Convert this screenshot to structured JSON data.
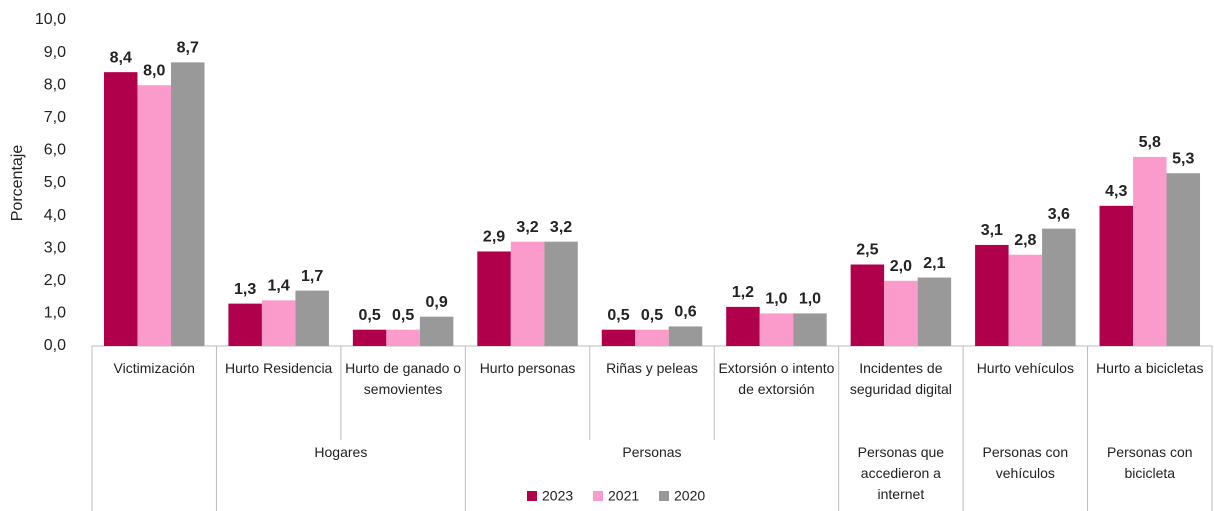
{
  "chart_data": {
    "type": "bar",
    "y_label": "Porcentaje",
    "categories": [
      "Victimización",
      "Hurto Residencia",
      "Hurto de ganado o semovientes",
      "Hurto personas",
      "Riñas y peleas",
      "Extorsión o intento de extorsión",
      "Incidentes de seguridad digital",
      "Hurto vehículos",
      "Hurto a bicicletas"
    ],
    "groups": [
      {
        "label": null,
        "span": 1
      },
      {
        "label": "Hogares",
        "span": 2
      },
      {
        "label": "Personas",
        "span": 3
      },
      {
        "label": "Personas que accedieron a internet",
        "span": 1
      },
      {
        "label": "Personas con vehículos",
        "span": 1
      },
      {
        "label": "Personas con bicicleta",
        "span": 1
      }
    ],
    "series": [
      {
        "name": "2023",
        "color": "#b0004c",
        "values": [
          8.4,
          1.3,
          0.5,
          2.9,
          0.5,
          1.2,
          2.5,
          3.1,
          4.3
        ],
        "value_labels": [
          "8,4",
          "1,3",
          "0,5",
          "2,9",
          "0,5",
          "1,2",
          "2,5",
          "3,1",
          "4,3"
        ]
      },
      {
        "name": "2021",
        "color": "#fb9bcc",
        "values": [
          8.0,
          1.4,
          0.5,
          3.2,
          0.5,
          1.0,
          2.0,
          2.8,
          5.8
        ],
        "value_labels": [
          "8,0",
          "1,4",
          "0,5",
          "3,2",
          "0,5",
          "1,0",
          "2,0",
          "2,8",
          "5,8"
        ]
      },
      {
        "name": "2020",
        "color": "#999999",
        "values": [
          8.7,
          1.7,
          0.9,
          3.2,
          0.6,
          1.0,
          2.1,
          3.6,
          5.3
        ],
        "value_labels": [
          "8,7",
          "1,7",
          "0,9",
          "3,2",
          "0,6",
          "1,0",
          "2,1",
          "3,6",
          "5,3"
        ]
      }
    ],
    "ylim": [
      0,
      10
    ],
    "yticks": [
      {
        "value": 0,
        "label": "0,0"
      },
      {
        "value": 1,
        "label": "1,0"
      },
      {
        "value": 2,
        "label": "2,0"
      },
      {
        "value": 3,
        "label": "3,0"
      },
      {
        "value": 4,
        "label": "4,0"
      },
      {
        "value": 5,
        "label": "5,0"
      },
      {
        "value": 6,
        "label": "6,0"
      },
      {
        "value": 7,
        "label": "7,0"
      },
      {
        "value": 8,
        "label": "8,0"
      },
      {
        "value": 9,
        "label": "9,0"
      },
      {
        "value": 10,
        "label": "10,0"
      }
    ],
    "legend": "bottom"
  }
}
